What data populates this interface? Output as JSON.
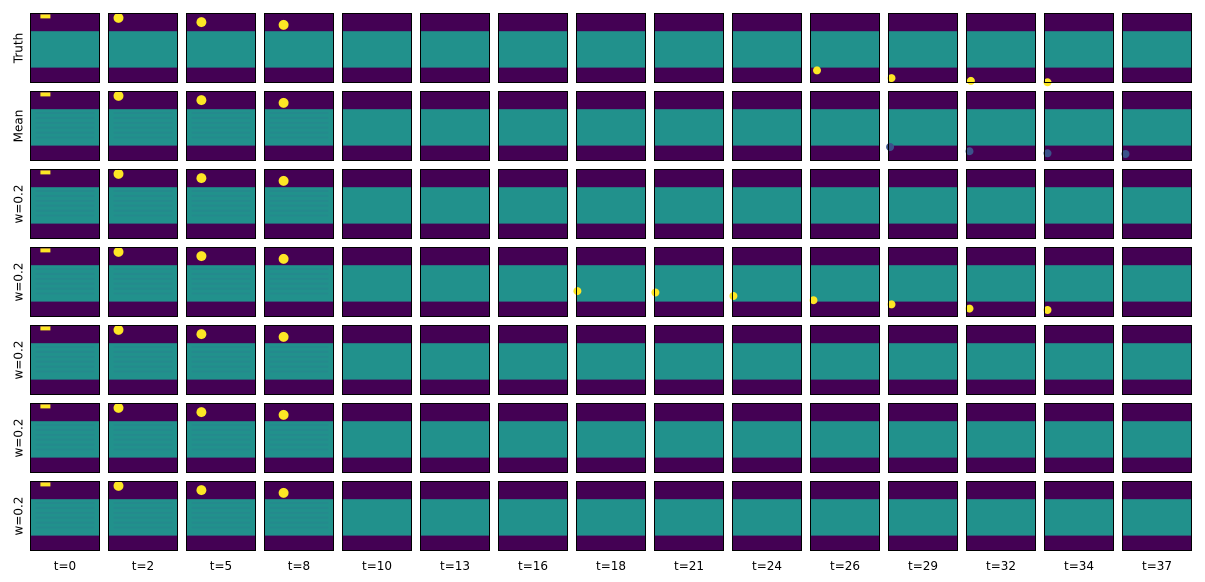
{
  "chart_data": {
    "type": "heatmap",
    "title": "",
    "rows": [
      "Truth",
      "Mean",
      "w=0.2",
      "w=0.2",
      "w=0.2",
      "w=0.2",
      "w=0.2"
    ],
    "columns": [
      "t=0",
      "t=2",
      "t=5",
      "t=8",
      "t=10",
      "t=13",
      "t=16",
      "t=18",
      "t=21",
      "t=24",
      "t=26",
      "t=29",
      "t=32",
      "t=34",
      "t=37"
    ],
    "colormap": {
      "background": "#440154",
      "rectangle": "#21918c",
      "ball": "#fde725",
      "artifact": "#3b528b"
    },
    "ball_positions": [
      [
        [
          0.22,
          0.02
        ],
        [
          0.15,
          0.07
        ],
        [
          0.22,
          0.13
        ],
        [
          0.28,
          0.17
        ],
        null,
        null,
        null,
        null,
        null,
        null,
        [
          0.1,
          0.82
        ],
        [
          0.05,
          0.93
        ],
        [
          0.07,
          0.97
        ],
        [
          0.05,
          0.99
        ],
        null
      ],
      [
        [
          0.22,
          0.02
        ],
        [
          0.15,
          0.07
        ],
        [
          0.22,
          0.13
        ],
        [
          0.28,
          0.17
        ],
        null,
        null,
        null,
        null,
        null,
        null,
        null,
        [
          0.03,
          0.8
        ],
        [
          0.05,
          0.86
        ],
        [
          0.05,
          0.89
        ],
        [
          0.05,
          0.9
        ]
      ],
      [
        [
          0.22,
          0.02
        ],
        [
          0.15,
          0.07
        ],
        [
          0.22,
          0.13
        ],
        [
          0.28,
          0.17
        ],
        null,
        null,
        null,
        null,
        null,
        null,
        null,
        null,
        null,
        null,
        null
      ],
      [
        [
          0.22,
          0.02
        ],
        [
          0.15,
          0.07
        ],
        [
          0.22,
          0.13
        ],
        [
          0.28,
          0.17
        ],
        null,
        null,
        null,
        [
          0.02,
          0.63
        ],
        [
          0.02,
          0.65
        ],
        [
          0.02,
          0.7
        ],
        [
          0.05,
          0.76
        ],
        [
          0.05,
          0.82
        ],
        [
          0.05,
          0.88
        ],
        [
          0.05,
          0.9
        ],
        null
      ],
      [
        [
          0.22,
          0.02
        ],
        [
          0.15,
          0.07
        ],
        [
          0.22,
          0.13
        ],
        [
          0.28,
          0.17
        ],
        null,
        null,
        null,
        null,
        null,
        null,
        null,
        null,
        null,
        null,
        null
      ],
      [
        [
          0.22,
          0.02
        ],
        [
          0.15,
          0.07
        ],
        [
          0.22,
          0.13
        ],
        [
          0.28,
          0.17
        ],
        null,
        null,
        null,
        null,
        null,
        null,
        null,
        null,
        null,
        null,
        null
      ],
      [
        [
          0.22,
          0.02
        ],
        [
          0.15,
          0.07
        ],
        [
          0.22,
          0.13
        ],
        [
          0.28,
          0.17
        ],
        null,
        null,
        null,
        null,
        null,
        null,
        null,
        null,
        null,
        null,
        null
      ]
    ]
  }
}
